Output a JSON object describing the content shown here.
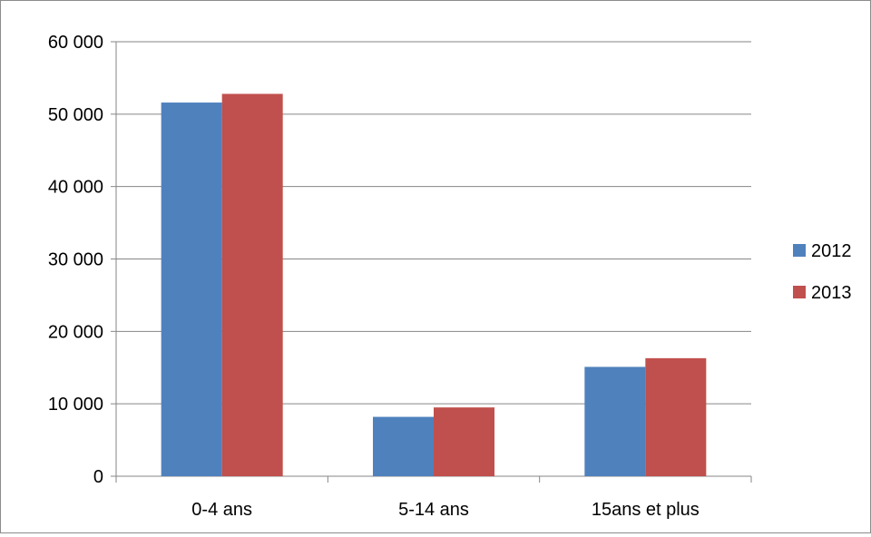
{
  "chart_data": {
    "type": "bar",
    "categories": [
      "0-4 ans",
      "5-14 ans",
      "15ans et plus"
    ],
    "series": [
      {
        "name": "2012",
        "values": [
          51600,
          8200,
          15100
        ],
        "color": "#4f81bd"
      },
      {
        "name": "2013",
        "values": [
          52800,
          9500,
          16300
        ],
        "color": "#c0504d"
      }
    ],
    "ylim": [
      0,
      60000
    ],
    "yticks": [
      0,
      10000,
      20000,
      30000,
      40000,
      50000,
      60000
    ],
    "ytick_labels": [
      "0",
      "10 000",
      "20 000",
      "30 000",
      "40 000",
      "50 000",
      "60 000"
    ],
    "grid": true,
    "legend_position": "right"
  }
}
